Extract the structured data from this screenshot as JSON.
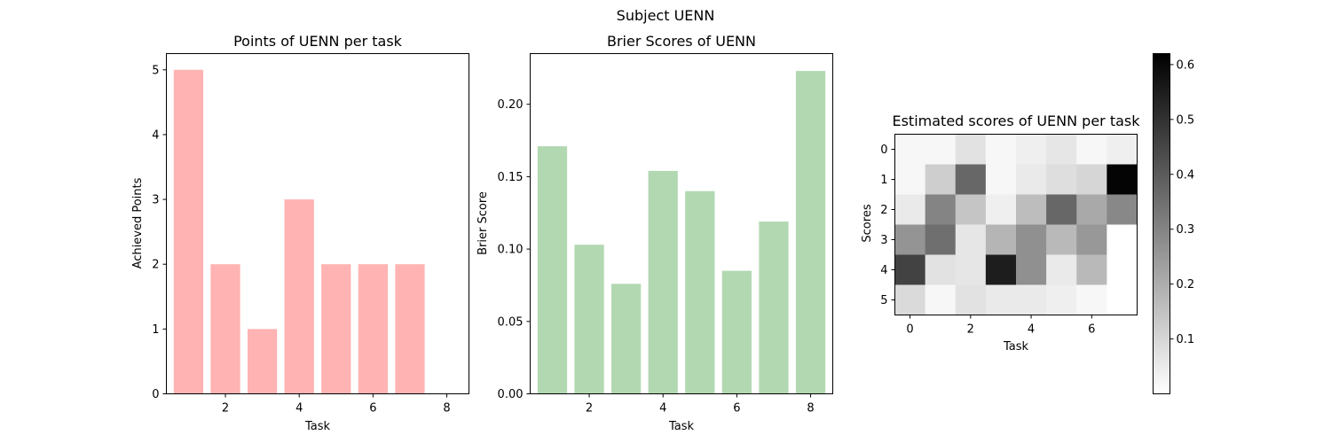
{
  "figure": {
    "suptitle": "Subject UENN"
  },
  "chart_data": [
    {
      "type": "bar",
      "title": "Points of UENN per task",
      "xlabel": "Task",
      "ylabel": "Achieved Points",
      "x": [
        1,
        2,
        3,
        4,
        5,
        6,
        7,
        8
      ],
      "values": [
        5,
        2,
        1,
        3,
        2,
        2,
        2,
        0
      ],
      "xlim": [
        0.4,
        8.6
      ],
      "ylim": [
        0,
        5.25
      ],
      "xticks": [
        2,
        4,
        6,
        8
      ],
      "yticks": [
        0,
        1,
        2,
        3,
        4,
        5
      ],
      "color": "#ffb3b3"
    },
    {
      "type": "bar",
      "title": "Brier Scores of UENN",
      "xlabel": "Task",
      "ylabel": "Brier Score",
      "x": [
        1,
        2,
        3,
        4,
        5,
        6,
        7,
        8
      ],
      "values": [
        0.171,
        0.103,
        0.076,
        0.154,
        0.14,
        0.085,
        0.119,
        0.223
      ],
      "xlim": [
        0.4,
        8.6
      ],
      "ylim": [
        0,
        0.235
      ],
      "xticks": [
        2,
        4,
        6,
        8
      ],
      "yticks": [
        "0.00",
        "0.05",
        "0.10",
        "0.15",
        "0.20"
      ],
      "color": "#b2d8b2"
    },
    {
      "type": "heatmap",
      "title": "Estimated scores of UENN per task",
      "xlabel": "Task",
      "ylabel": "Scores",
      "xticks": [
        0,
        2,
        4,
        6
      ],
      "yticks": [
        0,
        1,
        2,
        3,
        4,
        5
      ],
      "colormap": "gray_r",
      "vmin": 0,
      "vmax": 0.62,
      "colorbar_ticks": [
        "0.1",
        "0.2",
        "0.3",
        "0.4",
        "0.5",
        "0.6"
      ],
      "values": [
        [
          0.02,
          0.02,
          0.07,
          0.02,
          0.04,
          0.06,
          0.02,
          0.04
        ],
        [
          0.02,
          0.12,
          0.37,
          0.02,
          0.05,
          0.08,
          0.1,
          0.61
        ],
        [
          0.05,
          0.3,
          0.14,
          0.04,
          0.16,
          0.37,
          0.21,
          0.29
        ],
        [
          0.26,
          0.35,
          0.06,
          0.18,
          0.27,
          0.17,
          0.25,
          0.0
        ],
        [
          0.46,
          0.07,
          0.06,
          0.55,
          0.27,
          0.05,
          0.17,
          0.0
        ],
        [
          0.09,
          0.02,
          0.07,
          0.05,
          0.05,
          0.04,
          0.02,
          0.0
        ]
      ]
    }
  ]
}
